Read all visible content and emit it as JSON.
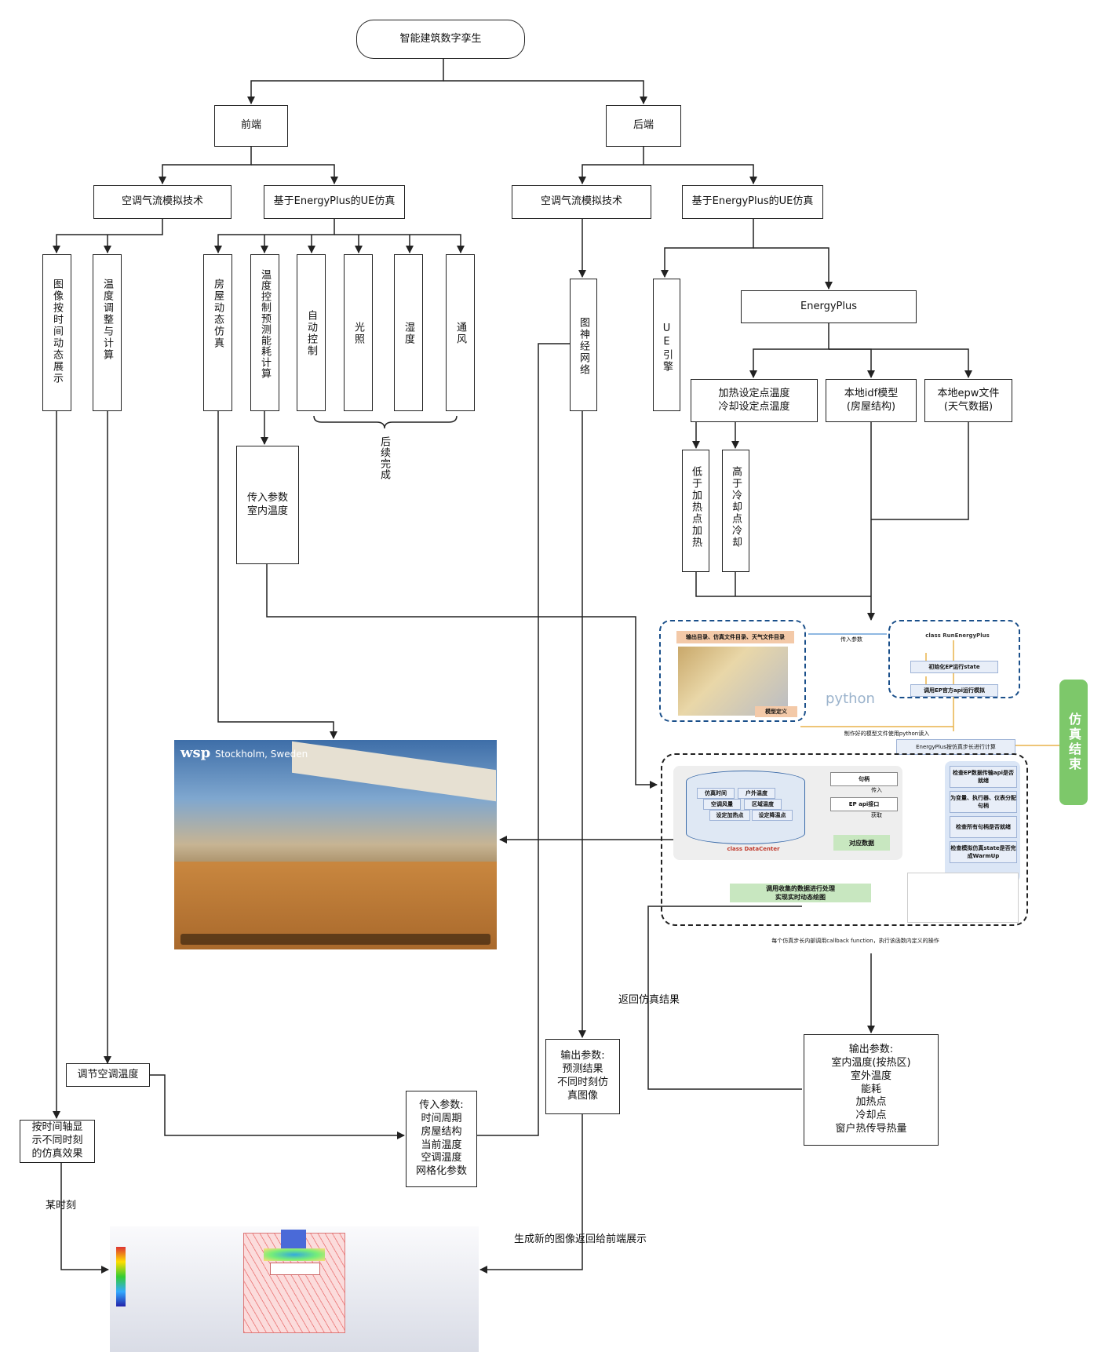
{
  "root": "智能建筑数字孪生",
  "frontend": "前端",
  "backend": "后端",
  "fe_airflow": "空调气流模拟技术",
  "fe_ue": "基于EnergyPlus的UE仿真",
  "be_airflow": "空调气流模拟技术",
  "be_ue": "基于EnergyPlus的UE仿真",
  "fe_v1": "图像按时间动态展示",
  "fe_v2": "温度调整与计算",
  "fe_v3": "房屋动态仿真",
  "fe_v4": "温度控制预测能耗计算",
  "fe_v5": "自动控制",
  "fe_v6": "光照",
  "fe_v7": "湿度",
  "fe_v8": "通风",
  "later": "后续完成",
  "pass_in_1": "传入参数\n室内温度",
  "be_gnn": "图神经网络",
  "be_ue_engine": "UE引擎",
  "energyplus": "EnergyPlus",
  "setpoint": "加热设定点温度\n冷却设定点温度",
  "idf": "本地idf模型\n(房屋结构)",
  "epw": "本地epw文件\n(天气数据)",
  "low_heat": "低于加热点加热",
  "high_cool": "高于冷却点冷却",
  "adjust_ac": "调节空调温度",
  "time_axis": "按时间轴显\n示不同时刻\n的仿真效果",
  "moment": "某时刻",
  "pass_in_2": "传入参数:\n时间周期\n房屋结构\n当前温度\n空调温度\n网格化参数",
  "out_gnn": "输出参数:\n预测结果\n不同时刻仿\n真图像",
  "return_sim": "返回仿真结果",
  "gen_image": "生成新的图像返回给前端展示",
  "out_ep": "输出参数:\n室内温度(按热区)\n室外温度\n能耗\n加热点\n冷却点\n窗户热传导热量",
  "panel": {
    "dirs": "输出目录、仿真文件目录、天气文件目录",
    "model_def": "模型定义",
    "pass_param": "传入参数",
    "run_class": "class RunEnergyPlus",
    "init_state": "初始化EP运行state",
    "call_api": "调用EP官方api运行模拟",
    "python": "python",
    "read_model": "制作好的模型文件使用python读入",
    "step_calc": "EnergyPlus按仿真步长进行计算",
    "handle": "句柄",
    "pass": "传入",
    "ep_api": "EP api接口",
    "get": "获取",
    "data": "对应数据",
    "dc": "class DataCenter",
    "f1": "仿真时间",
    "f2": "户外温度",
    "f3": "空调风量",
    "f4": "区域温度",
    "f5": "设定加热点",
    "f6": "设定降温点",
    "c1": "检查EP数据传输api是否就绪",
    "c2": "为变量、执行器、仪表分配句柄",
    "c3": "检查所有句柄是否就绪",
    "c4": "检查模拟仿真state是否完成WarmUp",
    "plot": "调用收集的数据进行处理\n实现实时动态绘图",
    "footer": "每个仿真步长内部调用callback function，执行该函数内定义的操作",
    "end": "仿真结束"
  },
  "render": {
    "brand": "wsp",
    "location": "Stockholm, Sweden"
  }
}
